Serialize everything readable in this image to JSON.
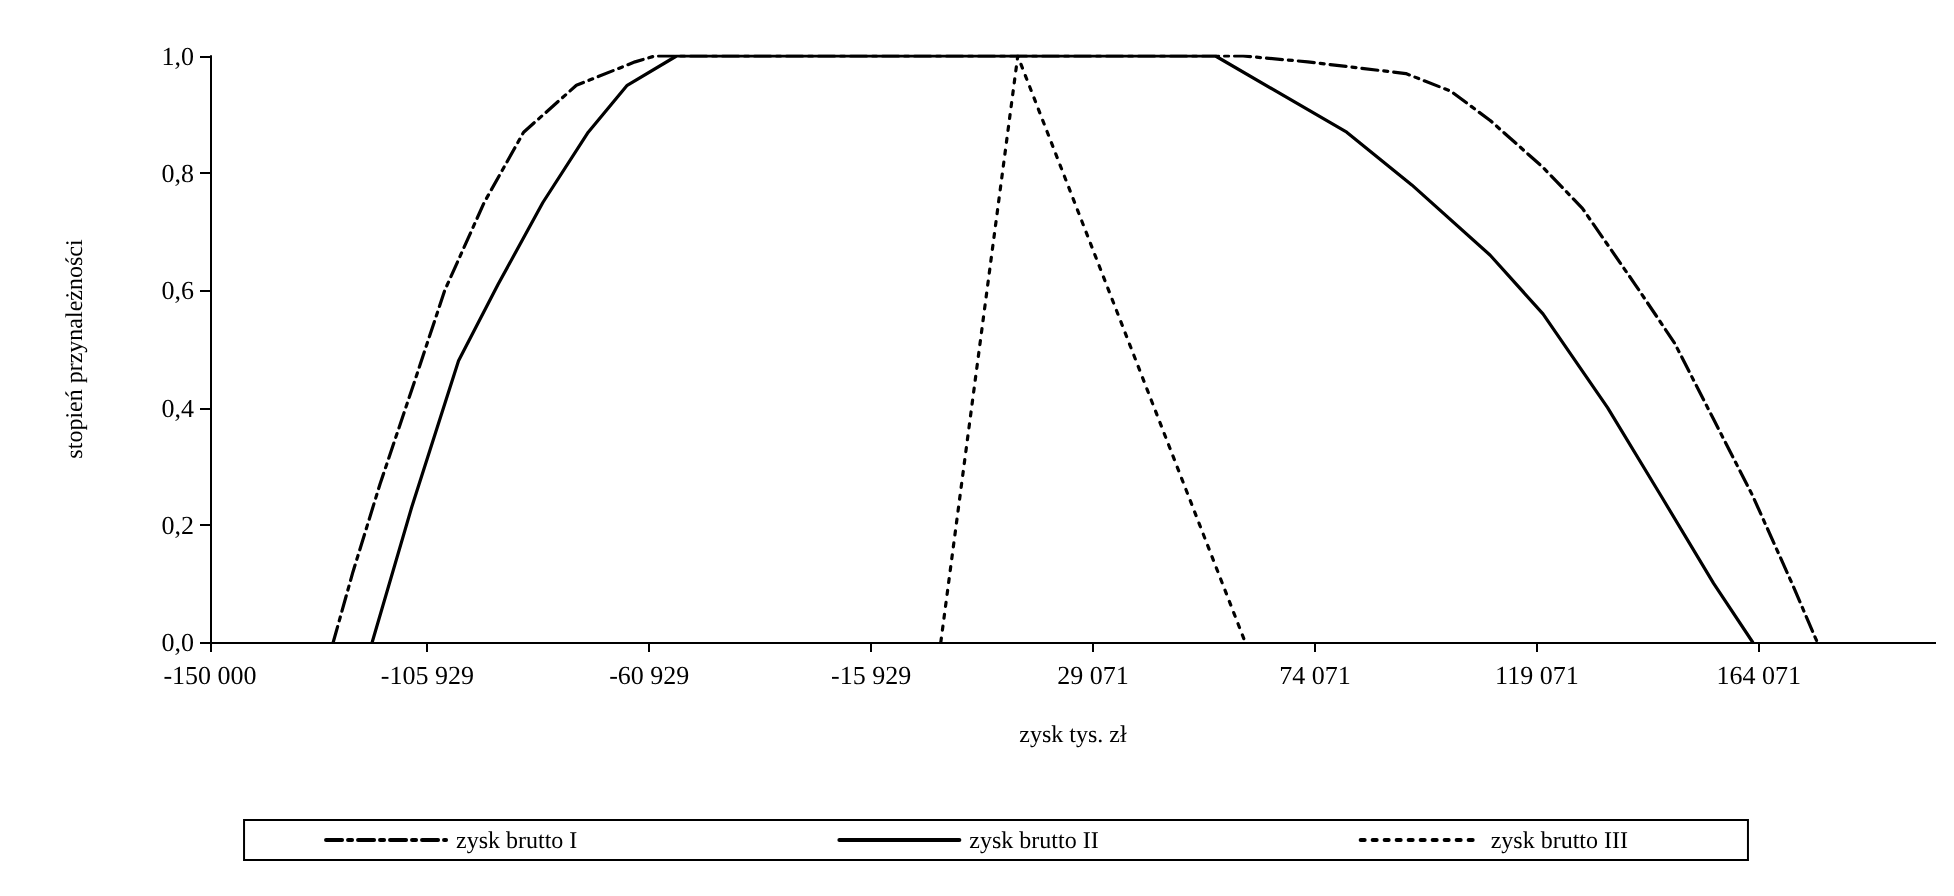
{
  "chart_data": {
    "type": "line",
    "xlabel": "zysk tys. zł",
    "ylabel": "stopień przynależności",
    "xlim": [
      -150000,
      200000
    ],
    "ylim": [
      0,
      1
    ],
    "xticks": [
      {
        "value": -150000,
        "label": "-150 000"
      },
      {
        "value": -105929,
        "label": "-105 929"
      },
      {
        "value": -60929,
        "label": "-60 929"
      },
      {
        "value": -15929,
        "label": "-15 929"
      },
      {
        "value": 29071,
        "label": "29 071"
      },
      {
        "value": 74071,
        "label": "74 071"
      },
      {
        "value": 119071,
        "label": "119 071"
      },
      {
        "value": 164071,
        "label": "164 071"
      }
    ],
    "yticks": [
      {
        "value": 0,
        "label": "0,0"
      },
      {
        "value": 0.2,
        "label": "0,2"
      },
      {
        "value": 0.4,
        "label": "0,4"
      },
      {
        "value": 0.6,
        "label": "0,6"
      },
      {
        "value": 0.8,
        "label": "0,8"
      },
      {
        "value": 1,
        "label": "1,0"
      }
    ],
    "grid": false,
    "legend": "bottom",
    "marker": "none",
    "series": [
      {
        "name": "zysk brutto I",
        "color": "#000000",
        "line_style": "dashdot",
        "x": [
          -125000,
          -121000,
          -115500,
          -109100,
          -102400,
          -94400,
          -86400,
          -75700,
          -63800,
          -59800,
          59500,
          72600,
          92500,
          101600,
          109600,
          120300,
          128300,
          139000,
          147000,
          154900,
          162800,
          170800,
          175900
        ],
        "values": [
          0,
          0.12,
          0.27,
          0.43,
          0.6,
          0.75,
          0.87,
          0.95,
          0.99,
          1,
          1,
          0.99,
          0.97,
          0.94,
          0.89,
          0.81,
          0.74,
          0.61,
          0.51,
          0.38,
          0.25,
          0.1,
          0
        ]
      },
      {
        "name": "zysk brutto II",
        "color": "#000000",
        "line_style": "solid",
        "x": [
          -117100,
          -109100,
          -99600,
          -91600,
          -82500,
          -73300,
          -65400,
          -55400,
          53900,
          80500,
          93700,
          109600,
          120300,
          133400,
          144200,
          154900,
          162800
        ],
        "values": [
          0,
          0.23,
          0.48,
          0.61,
          0.75,
          0.87,
          0.95,
          1,
          1,
          0.87,
          0.78,
          0.66,
          0.56,
          0.4,
          0.25,
          0.1,
          0
        ]
      },
      {
        "name": "zysk brutto III",
        "color": "#000000",
        "line_style": "dotted",
        "x": [
          -1800,
          13800,
          59900
        ],
        "values": [
          0,
          1,
          0
        ]
      }
    ]
  }
}
